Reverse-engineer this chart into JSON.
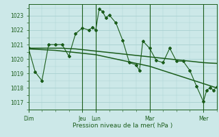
{
  "xlabel": "Pression niveau de la mer( hPa )",
  "bg_color": "#cce8e8",
  "grid_color": "#a8d0d0",
  "line_color": "#1a5c1a",
  "tick_label_color": "#1a5c1a",
  "axis_label_color": "#1a5c1a",
  "ylim": [
    1016.5,
    1023.8
  ],
  "yticks": [
    1017,
    1018,
    1019,
    1020,
    1021,
    1022,
    1023
  ],
  "day_labels": [
    "Dim",
    "Jeu",
    "Lun",
    "Mar",
    "Mer"
  ],
  "day_positions": [
    0,
    96,
    120,
    216,
    312
  ],
  "total_steps": 336,
  "smooth_line1": [
    [
      0,
      1020.75
    ],
    [
      12,
      1020.75
    ],
    [
      24,
      1020.75
    ],
    [
      36,
      1020.75
    ],
    [
      48,
      1020.75
    ],
    [
      60,
      1020.75
    ],
    [
      72,
      1020.72
    ],
    [
      84,
      1020.7
    ],
    [
      96,
      1020.65
    ],
    [
      108,
      1020.6
    ],
    [
      120,
      1020.55
    ],
    [
      132,
      1020.5
    ],
    [
      144,
      1020.45
    ],
    [
      156,
      1020.4
    ],
    [
      168,
      1020.35
    ],
    [
      180,
      1020.3
    ],
    [
      192,
      1020.25
    ],
    [
      204,
      1020.2
    ],
    [
      216,
      1020.15
    ],
    [
      228,
      1020.1
    ],
    [
      240,
      1020.05
    ],
    [
      252,
      1020.0
    ],
    [
      264,
      1019.95
    ],
    [
      276,
      1019.9
    ],
    [
      288,
      1019.85
    ],
    [
      300,
      1019.8
    ],
    [
      312,
      1019.75
    ],
    [
      324,
      1019.72
    ],
    [
      336,
      1019.7
    ]
  ],
  "smooth_line2": [
    [
      0,
      1020.7
    ],
    [
      24,
      1020.65
    ],
    [
      48,
      1020.6
    ],
    [
      72,
      1020.5
    ],
    [
      96,
      1020.4
    ],
    [
      120,
      1020.3
    ],
    [
      144,
      1020.1
    ],
    [
      168,
      1019.9
    ],
    [
      192,
      1019.7
    ],
    [
      216,
      1019.5
    ],
    [
      240,
      1019.2
    ],
    [
      264,
      1018.9
    ],
    [
      288,
      1018.6
    ],
    [
      312,
      1018.3
    ],
    [
      336,
      1018.0
    ]
  ],
  "jagged_line": [
    [
      0,
      1020.75
    ],
    [
      12,
      1019.1
    ],
    [
      24,
      1018.5
    ],
    [
      36,
      1021.0
    ],
    [
      48,
      1021.0
    ],
    [
      60,
      1021.0
    ],
    [
      72,
      1020.2
    ],
    [
      84,
      1021.75
    ],
    [
      96,
      1022.15
    ],
    [
      108,
      1022.0
    ],
    [
      114,
      1022.2
    ],
    [
      120,
      1022.0
    ],
    [
      126,
      1023.45
    ],
    [
      132,
      1023.3
    ],
    [
      138,
      1022.85
    ],
    [
      144,
      1023.05
    ],
    [
      156,
      1022.5
    ],
    [
      168,
      1021.3
    ],
    [
      180,
      1019.75
    ],
    [
      192,
      1019.6
    ],
    [
      198,
      1019.2
    ],
    [
      204,
      1021.25
    ],
    [
      216,
      1020.75
    ],
    [
      228,
      1019.9
    ],
    [
      240,
      1019.75
    ],
    [
      252,
      1020.75
    ],
    [
      264,
      1019.85
    ],
    [
      276,
      1019.85
    ],
    [
      288,
      1019.2
    ],
    [
      300,
      1018.1
    ],
    [
      312,
      1017.05
    ],
    [
      318,
      1017.85
    ],
    [
      324,
      1018.0
    ],
    [
      330,
      1017.85
    ],
    [
      336,
      1018.05
    ]
  ]
}
